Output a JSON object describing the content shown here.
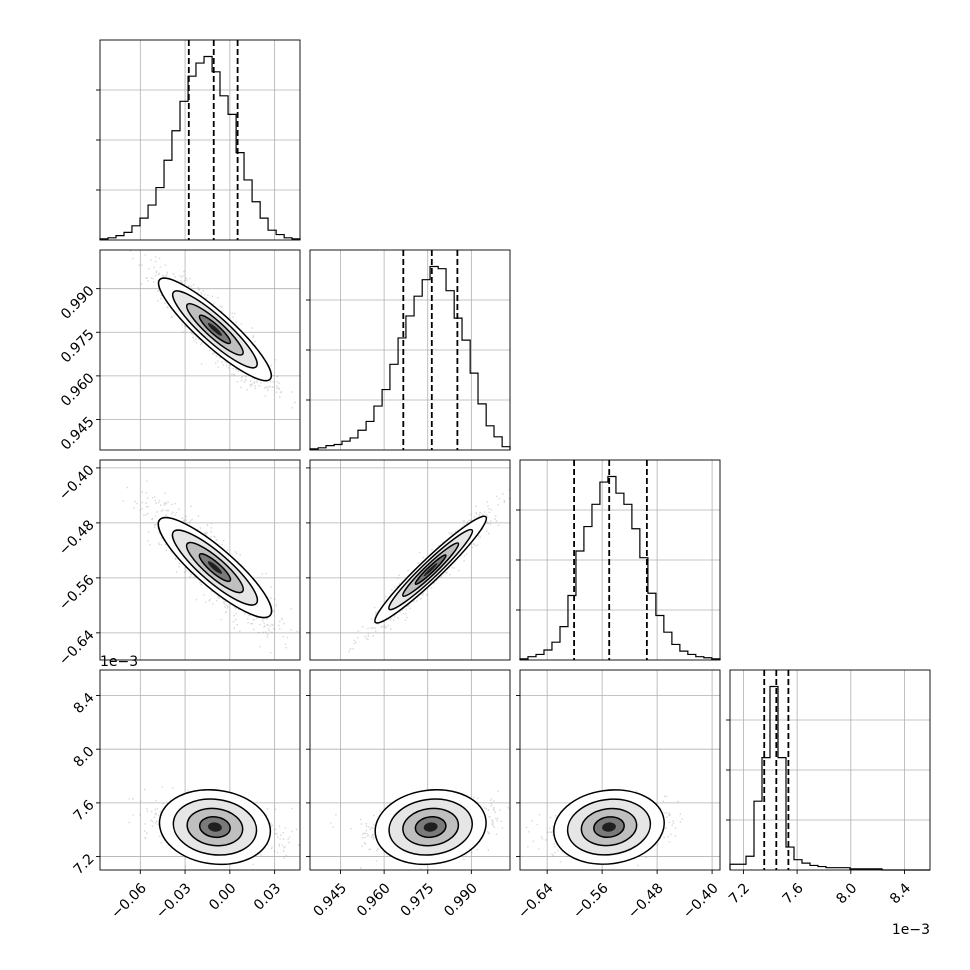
{
  "chart_data": {
    "type": "corner",
    "parameters": [
      {
        "ticks": [
          -0.06,
          -0.03,
          0.0,
          0.03
        ],
        "tick_labels": [
          "−0.06",
          "−0.03",
          "0.00",
          "0.03"
        ],
        "range": [
          -0.087,
          0.047
        ],
        "offset_label": "",
        "hist": {
          "edges": [
            -0.087,
            -0.0817,
            -0.0763,
            -0.0709,
            -0.0656,
            -0.0602,
            -0.0548,
            -0.0495,
            -0.0441,
            -0.0388,
            -0.0334,
            -0.028,
            -0.0227,
            -0.0173,
            -0.0119,
            -0.0066,
            -0.0012,
            0.0042,
            0.0095,
            0.0149,
            0.0203,
            0.0256,
            0.031,
            0.0364,
            0.0417,
            0.047
          ],
          "counts": [
            1,
            2,
            4,
            7,
            13,
            20,
            32,
            48,
            73,
            100,
            127,
            150,
            162,
            168,
            154,
            132,
            115,
            80,
            55,
            35,
            20,
            9,
            5,
            2,
            1
          ]
        },
        "quantiles": [
          -0.0275,
          -0.0108,
          0.0052
        ]
      },
      {
        "ticks": [
          0.945,
          0.96,
          0.975,
          0.99
        ],
        "tick_labels": [
          "0.945",
          "0.960",
          "0.975",
          "0.990"
        ],
        "range": [
          0.9345,
          1.0033
        ],
        "offset_label": "",
        "hist": {
          "edges": [
            0.9345,
            0.9373,
            0.94,
            0.9428,
            0.9455,
            0.9483,
            0.951,
            0.9538,
            0.9565,
            0.9593,
            0.962,
            0.9648,
            0.9675,
            0.9703,
            0.9731,
            0.9758,
            0.9786,
            0.9813,
            0.9841,
            0.9868,
            0.9896,
            0.9923,
            0.9951,
            0.9978,
            1.0006,
            1.0033
          ],
          "counts": [
            1,
            2,
            4,
            5,
            8,
            11,
            18,
            26,
            40,
            55,
            78,
            102,
            122,
            140,
            155,
            167,
            165,
            145,
            120,
            100,
            70,
            42,
            22,
            12,
            3
          ]
        },
        "quantiles": [
          0.9666,
          0.9764,
          0.9852
        ]
      },
      {
        "ticks": [
          -0.64,
          -0.56,
          -0.48,
          -0.4
        ],
        "tick_labels": [
          "−0.64",
          "−0.56",
          "−0.48",
          "−0.40"
        ],
        "range": [
          -0.6795,
          -0.3885
        ],
        "offset_label": "",
        "hist": {
          "edges": [
            -0.6795,
            -0.6679,
            -0.6562,
            -0.6446,
            -0.633,
            -0.6213,
            -0.6097,
            -0.5981,
            -0.5865,
            -0.5748,
            -0.5632,
            -0.5516,
            -0.5399,
            -0.5283,
            -0.5167,
            -0.5051,
            -0.4934,
            -0.4818,
            -0.4702,
            -0.4585,
            -0.4469,
            -0.4353,
            -0.4237,
            -0.412,
            -0.4004,
            -0.3885
          ],
          "counts": [
            1,
            3,
            5,
            9,
            16,
            30,
            58,
            98,
            120,
            140,
            160,
            165,
            150,
            140,
            118,
            92,
            60,
            40,
            25,
            14,
            8,
            5,
            3,
            2,
            1
          ]
        },
        "quantiles": [
          -0.6008,
          -0.5497,
          -0.4949
        ]
      },
      {
        "ticks": [
          7.2,
          7.6,
          8.0,
          8.4
        ],
        "tick_labels": [
          "7.2",
          "7.6",
          "8.0",
          "8.4"
        ],
        "range": [
          7.1,
          8.59
        ],
        "offset_label": "1e−3",
        "hist": {
          "edges": [
            7.1,
            7.1596,
            7.2192,
            7.2788,
            7.3384,
            7.398,
            7.4576,
            7.5172,
            7.5768,
            7.6364,
            7.696,
            7.7556,
            7.8152,
            7.8748,
            7.9344,
            7.994,
            8.0536,
            8.1132,
            8.1728,
            8.2324,
            8.292,
            8.3516,
            8.4112,
            8.4708,
            8.5304,
            8.59
          ],
          "counts": [
            5,
            5,
            12,
            60,
            98,
            160,
            98,
            20,
            9,
            6,
            4,
            3,
            2,
            2,
            2,
            1,
            1,
            1,
            1,
            0,
            0,
            0,
            0,
            0,
            0
          ]
        },
        "quantiles": [
          7.355,
          7.445,
          7.535
        ]
      }
    ],
    "pairs": [
      {
        "row": 1,
        "col": 0,
        "center": [
          -0.01,
          0.976
        ],
        "sigma": [
          0.0185,
          0.0095
        ],
        "rho": -0.9,
        "scatter_extent": [
          0.0,
          0.9952
        ]
      },
      {
        "row": 2,
        "col": 0,
        "center": [
          -0.01,
          -0.545
        ],
        "sigma": [
          0.0185,
          0.04
        ],
        "rho": -0.87,
        "scatter_extent": [
          0.0,
          -0.545
        ]
      },
      {
        "row": 2,
        "col": 1,
        "center": [
          0.976,
          -0.548
        ],
        "sigma": [
          0.0095,
          0.04
        ],
        "rho": 0.96,
        "scatter_extent": [
          0.0,
          -0.548
        ]
      },
      {
        "row": 3,
        "col": 0,
        "center": [
          -0.01,
          7.42
        ],
        "sigma": [
          0.0185,
          0.09
        ],
        "rho": -0.3,
        "curve": 300
      },
      {
        "row": 3,
        "col": 1,
        "center": [
          0.976,
          7.42
        ],
        "sigma": [
          0.0095,
          0.09
        ],
        "rho": 0.3,
        "curve": 1100
      },
      {
        "row": 3,
        "col": 2,
        "center": [
          -0.55,
          7.42
        ],
        "sigma": [
          0.04,
          0.09
        ],
        "rho": 0.3,
        "curve": 60
      }
    ],
    "grid": true
  }
}
